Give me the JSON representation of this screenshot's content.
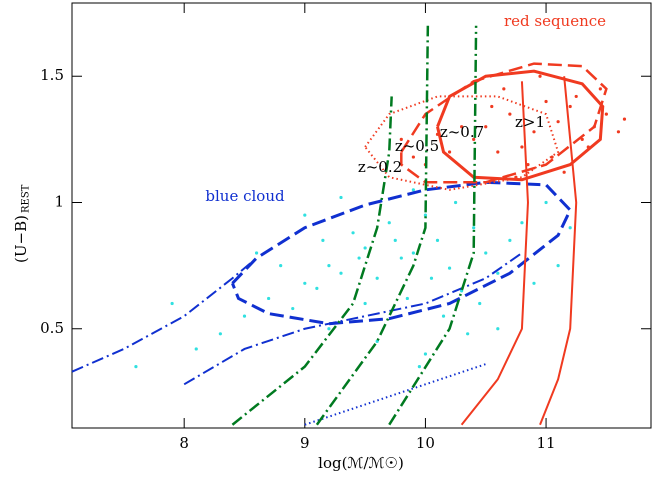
{
  "chart_data": {
    "type": "scatter",
    "x_label": "log(ℳ/ℳ☉)",
    "y_label": "(U−B)",
    "y_label_sub": "REST",
    "xlim": [
      7.07,
      11.87
    ],
    "ylim": [
      0.107,
      1.79
    ],
    "xticks": [
      8,
      9,
      10,
      11
    ],
    "yticks": [
      0.5,
      1,
      1.5
    ],
    "series": [
      {
        "color": "#30e0e0",
        "x": [
          9.2,
          9.5,
          9.8,
          10.1,
          10.4,
          9.0,
          9.3,
          9.6,
          9.9,
          10.2,
          10.5,
          10.8,
          8.7,
          8.9,
          9.1,
          9.4,
          9.7,
          10.0,
          10.3,
          10.6,
          8.5,
          8.8,
          9.2,
          9.5,
          9.85,
          10.15,
          10.45,
          10.7,
          11.0,
          8.3,
          9.0,
          9.6,
          10.0,
          10.35,
          10.9,
          8.1,
          9.3,
          9.9,
          10.6,
          7.6,
          7.9,
          11.2,
          9.75,
          10.05,
          9.45,
          8.6,
          10.25,
          9.15,
          11.1,
          9.95
        ],
        "values": [
          0.75,
          0.82,
          0.78,
          0.85,
          0.9,
          0.68,
          0.72,
          0.7,
          0.8,
          0.74,
          0.8,
          0.92,
          0.62,
          0.58,
          0.66,
          0.88,
          0.92,
          0.95,
          0.65,
          0.72,
          0.55,
          0.75,
          0.5,
          0.6,
          0.62,
          0.55,
          0.6,
          0.85,
          1.0,
          0.48,
          0.95,
          0.45,
          0.4,
          0.48,
          0.68,
          0.42,
          1.02,
          1.05,
          0.5,
          0.35,
          0.6,
          0.9,
          0.85,
          0.7,
          0.78,
          0.8,
          1.0,
          0.85,
          0.75,
          0.35
        ]
      },
      {
        "color": "#f03a20",
        "x": [
          10.5,
          10.7,
          10.9,
          11.1,
          11.3,
          10.6,
          10.8,
          11.0,
          11.2,
          11.4,
          10.4,
          10.65,
          10.85,
          11.05,
          11.25,
          11.5,
          10.2,
          10.3,
          9.9,
          10.1,
          10.75,
          10.95,
          11.15,
          11.35,
          11.6,
          9.8,
          10.55,
          11.45,
          10.0,
          11.65
        ],
        "values": [
          1.3,
          1.35,
          1.28,
          1.32,
          1.25,
          1.2,
          1.22,
          1.4,
          1.38,
          1.3,
          1.25,
          1.45,
          1.15,
          1.18,
          1.42,
          1.35,
          1.2,
          1.3,
          1.18,
          1.27,
          1.1,
          1.5,
          1.12,
          1.22,
          1.28,
          1.25,
          1.38,
          1.45,
          1.15,
          1.33
        ]
      }
    ],
    "lines": [
      {
        "color": "#1030d0",
        "style": "dashed",
        "width": 3,
        "x": [
          8.4,
          8.6,
          9.0,
          9.5,
          10.0,
          10.5,
          11.0,
          11.2,
          11.1,
          10.7,
          10.2,
          9.7,
          9.2,
          8.7,
          8.45,
          8.4
        ],
        "values": [
          0.68,
          0.78,
          0.9,
          0.99,
          1.05,
          1.08,
          1.07,
          0.97,
          0.87,
          0.72,
          0.6,
          0.54,
          0.52,
          0.56,
          0.62,
          0.68
        ]
      },
      {
        "color": "#f03a20",
        "style": "solid",
        "width": 3,
        "x": [
          10.1,
          10.2,
          10.5,
          10.9,
          11.3,
          11.47,
          11.45,
          11.2,
          10.8,
          10.4,
          10.15,
          10.1
        ],
        "values": [
          1.3,
          1.42,
          1.5,
          1.52,
          1.47,
          1.38,
          1.25,
          1.15,
          1.09,
          1.1,
          1.2,
          1.3
        ]
      },
      {
        "color": "#f03a20",
        "style": "dashed",
        "width": 2.5,
        "x": [
          9.8,
          10.0,
          10.4,
          10.9,
          11.3,
          11.5,
          11.4,
          11.0,
          10.5,
          10.0,
          9.8,
          9.8
        ],
        "values": [
          1.2,
          1.35,
          1.48,
          1.55,
          1.54,
          1.45,
          1.3,
          1.15,
          1.08,
          1.08,
          1.15,
          1.2
        ]
      },
      {
        "color": "#f03a20",
        "style": "dotted",
        "width": 2,
        "x": [
          9.5,
          9.7,
          10.1,
          10.6,
          11.0,
          11.1,
          10.8,
          10.2,
          9.7,
          9.5
        ],
        "values": [
          1.22,
          1.35,
          1.42,
          1.42,
          1.35,
          1.2,
          1.1,
          1.05,
          1.1,
          1.22
        ]
      },
      {
        "color": "#1030d0",
        "style": "dashdot",
        "width": 2,
        "x": [
          7.07,
          7.5,
          8.0,
          8.4,
          8.6
        ],
        "values": [
          0.33,
          0.42,
          0.55,
          0.7,
          0.78
        ]
      },
      {
        "color": "#1030d0",
        "style": "dashdot",
        "width": 2,
        "x": [
          8.0,
          8.5,
          9.0,
          9.5,
          10.0,
          10.5,
          10.8
        ],
        "values": [
          0.28,
          0.42,
          0.5,
          0.55,
          0.6,
          0.7,
          0.8
        ]
      },
      {
        "color": "#1030d0",
        "style": "dotted",
        "width": 2,
        "x": [
          9.0,
          9.5,
          10.0,
          10.5
        ],
        "values": [
          0.12,
          0.2,
          0.28,
          0.36
        ]
      },
      {
        "color": "#007a20",
        "style": "dashdot",
        "width": 2.5,
        "x": [
          8.4,
          9.0,
          9.4,
          9.6,
          9.7,
          9.72
        ],
        "values": [
          0.12,
          0.35,
          0.6,
          0.9,
          1.2,
          1.42
        ]
      },
      {
        "color": "#007a20",
        "style": "dashdot",
        "width": 2.5,
        "x": [
          9.1,
          9.6,
          9.9,
          10.0,
          10.02
        ],
        "values": [
          0.12,
          0.45,
          0.75,
          0.9,
          1.7
        ]
      },
      {
        "color": "#007a20",
        "style": "dashdot",
        "width": 2.5,
        "x": [
          9.7,
          10.2,
          10.4,
          10.42
        ],
        "values": [
          0.12,
          0.5,
          0.8,
          1.7
        ]
      },
      {
        "color": "#f03a20",
        "style": "solid",
        "width": 2,
        "x": [
          10.3,
          10.6,
          10.8,
          10.85,
          10.8
        ],
        "values": [
          0.12,
          0.3,
          0.5,
          1.0,
          1.48
        ]
      },
      {
        "color": "#f03a20",
        "style": "solid",
        "width": 2,
        "x": [
          10.95,
          11.1,
          11.2,
          11.25,
          11.15
        ],
        "values": [
          0.12,
          0.3,
          0.5,
          1.0,
          1.5
        ]
      }
    ],
    "annotations": [
      {
        "text": "red sequence",
        "color": "#f03a20"
      },
      {
        "text": "blue cloud",
        "color": "#1030d0"
      },
      {
        "text": "z~0.2",
        "color": "#000000"
      },
      {
        "text": "z~0.5",
        "color": "#000000"
      },
      {
        "text": "z~0.7",
        "color": "#000000"
      },
      {
        "text": "z>1",
        "color": "#000000"
      }
    ]
  }
}
